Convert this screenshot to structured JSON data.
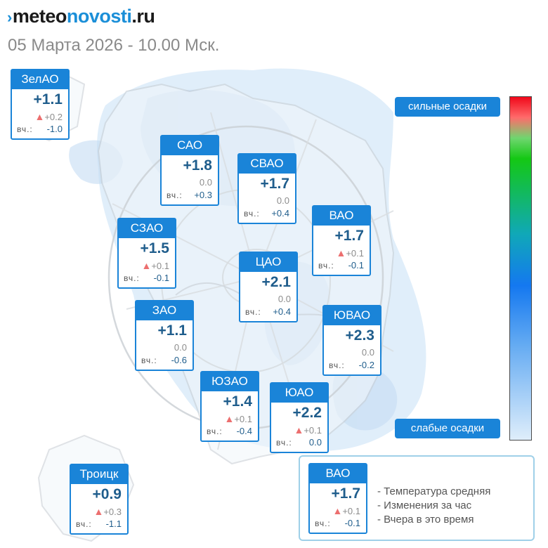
{
  "logo": {
    "mark": "›",
    "part1": "meteo",
    "part2": "novosti",
    "part3": ".ru"
  },
  "datetime": "05 Марта 2026 - 10.00 Мск.",
  "yesterday_label": "вч.:",
  "districts": [
    {
      "name": "ЗелАО",
      "temp": "+1.1",
      "change": "+0.2",
      "change_up": true,
      "yesterday": "-1.0"
    },
    {
      "name": "САО",
      "temp": "+1.8",
      "change": "0.0",
      "change_up": false,
      "yesterday": "+0.3"
    },
    {
      "name": "СВАО",
      "temp": "+1.7",
      "change": "0.0",
      "change_up": false,
      "yesterday": "+0.4"
    },
    {
      "name": "ВАО",
      "temp": "+1.7",
      "change": "+0.1",
      "change_up": true,
      "yesterday": "-0.1"
    },
    {
      "name": "СЗАО",
      "temp": "+1.5",
      "change": "+0.1",
      "change_up": true,
      "yesterday": "-0.1"
    },
    {
      "name": "ЦАО",
      "temp": "+2.1",
      "change": "0.0",
      "change_up": false,
      "yesterday": "+0.4"
    },
    {
      "name": "ЗАО",
      "temp": "+1.1",
      "change": "0.0",
      "change_up": false,
      "yesterday": "-0.6"
    },
    {
      "name": "ЮВАО",
      "temp": "+2.3",
      "change": "0.0",
      "change_up": false,
      "yesterday": "-0.2"
    },
    {
      "name": "ЮЗАО",
      "temp": "+1.4",
      "change": "+0.1",
      "change_up": true,
      "yesterday": "-0.4"
    },
    {
      "name": "ЮАО",
      "temp": "+2.2",
      "change": "+0.1",
      "change_up": true,
      "yesterday": "0.0"
    },
    {
      "name": "Троицк",
      "temp": "+0.9",
      "change": "+0.3",
      "change_up": true,
      "yesterday": "-1.1"
    }
  ],
  "scale": {
    "heavy": "сильные осадки",
    "light": "слабые осадки"
  },
  "legend": {
    "sample": {
      "name": "ВАО",
      "temp": "+1.7",
      "change": "+0.1",
      "change_up": true,
      "yesterday": "-0.1"
    },
    "items": [
      "- Температура средняя",
      "- Изменения за час",
      "- Вчера в это время"
    ]
  },
  "colors": {
    "accent": "#1a84d8",
    "temp_text": "#1f5d8c",
    "rise": "#ec6f6f",
    "precip": "#cfe4f8"
  }
}
